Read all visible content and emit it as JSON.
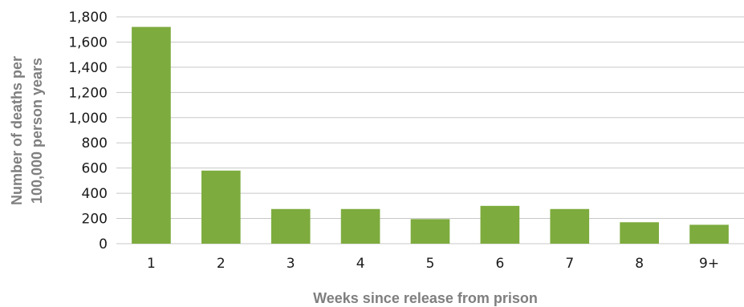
{
  "chart_data": {
    "type": "bar",
    "title": "",
    "xlabel": "Weeks since release from prison",
    "ylabel_lines": [
      "Number of deaths per",
      "100,000 person years"
    ],
    "categories": [
      "1",
      "2",
      "3",
      "4",
      "5",
      "6",
      "7",
      "8",
      "9+"
    ],
    "values": [
      1720,
      580,
      275,
      275,
      195,
      300,
      275,
      170,
      150
    ],
    "ylim": [
      0,
      1800
    ],
    "yticks": [
      "0",
      "200",
      "400",
      "600",
      "800",
      "1,000",
      "1,200",
      "1,400",
      "1,600",
      "1,800"
    ],
    "grid": true,
    "bar_color": "#7dab3e",
    "grid_color": "#c8c8c8"
  }
}
